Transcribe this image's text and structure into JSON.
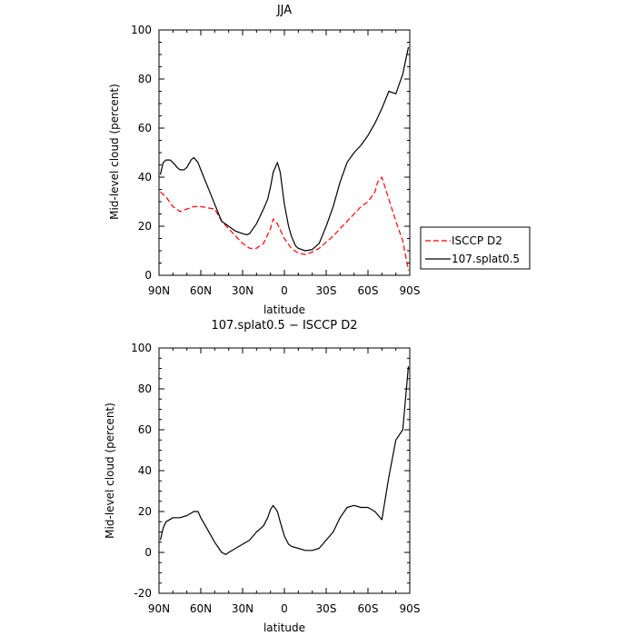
{
  "chart_data": [
    {
      "type": "line",
      "title": "JJA",
      "xlabel": "latitude",
      "ylabel": "Mid-level cloud (percent)",
      "xlim": [
        -90,
        90
      ],
      "ylim": [
        0,
        100
      ],
      "xticks": [
        {
          "value": -90,
          "label": "90N"
        },
        {
          "value": -60,
          "label": "60N"
        },
        {
          "value": -30,
          "label": "30N"
        },
        {
          "value": 0,
          "label": "0"
        },
        {
          "value": 30,
          "label": "30S"
        },
        {
          "value": 60,
          "label": "60S"
        },
        {
          "value": 90,
          "label": "90S"
        }
      ],
      "yticks": [
        0,
        20,
        40,
        60,
        80,
        100
      ],
      "grid": false,
      "legend_position": "right",
      "series": [
        {
          "name": "ISCCP D2",
          "color": "#ff0000",
          "dash": "dashed",
          "x": [
            -89,
            -85,
            -80,
            -75,
            -70,
            -65,
            -60,
            -55,
            -50,
            -45,
            -40,
            -35,
            -30,
            -25,
            -20,
            -15,
            -10,
            -8,
            -5,
            0,
            5,
            10,
            15,
            20,
            25,
            30,
            35,
            40,
            45,
            50,
            55,
            60,
            65,
            67,
            70,
            75,
            80,
            85,
            89
          ],
          "y": [
            34,
            32,
            28,
            26,
            27,
            28,
            28,
            27.5,
            27,
            22,
            19,
            16,
            13,
            11,
            11,
            13,
            19,
            23,
            21,
            15,
            11,
            9,
            8.5,
            9.5,
            11,
            13.5,
            16,
            19,
            22,
            25,
            28,
            30,
            34,
            38,
            40,
            31,
            22,
            14,
            2
          ]
        },
        {
          "name": "107.splat0.5",
          "color": "#000000",
          "dash": "solid",
          "x": [
            -89,
            -87,
            -85,
            -82,
            -80,
            -77,
            -75,
            -72,
            -70,
            -67,
            -65,
            -62,
            -60,
            -55,
            -50,
            -45,
            -40,
            -35,
            -30,
            -27,
            -25,
            -20,
            -15,
            -12,
            -10,
            -8,
            -5,
            -3,
            0,
            3,
            5,
            8,
            10,
            15,
            20,
            25,
            30,
            35,
            40,
            45,
            50,
            55,
            60,
            65,
            70,
            75,
            80,
            85,
            89
          ],
          "y": [
            41,
            46,
            47,
            47,
            46,
            44,
            43,
            43,
            44,
            47,
            48,
            46,
            43,
            36,
            29,
            22,
            20,
            18,
            17,
            16.5,
            17,
            21,
            27,
            31,
            36,
            42,
            46,
            42,
            29,
            20,
            16,
            12,
            11,
            10,
            10.5,
            13,
            20,
            28,
            38,
            46,
            50,
            53,
            57,
            62,
            68,
            75,
            74,
            82,
            93
          ]
        }
      ]
    },
    {
      "type": "line",
      "title": "107.splat0.5 − ISCCP D2",
      "xlabel": "latitude",
      "ylabel": "Mid-level cloud (percent)",
      "xlim": [
        -90,
        90
      ],
      "ylim": [
        -20,
        100
      ],
      "xticks": [
        {
          "value": -90,
          "label": "90N"
        },
        {
          "value": -60,
          "label": "60N"
        },
        {
          "value": -30,
          "label": "30N"
        },
        {
          "value": 0,
          "label": "0"
        },
        {
          "value": 30,
          "label": "30S"
        },
        {
          "value": 60,
          "label": "60S"
        },
        {
          "value": 90,
          "label": "90S"
        }
      ],
      "yticks": [
        -20,
        0,
        20,
        40,
        60,
        80,
        100
      ],
      "grid": false,
      "series": [
        {
          "color": "#000000",
          "dash": "solid",
          "x": [
            -89,
            -87,
            -85,
            -80,
            -75,
            -70,
            -65,
            -62,
            -60,
            -55,
            -50,
            -47,
            -45,
            -42,
            -40,
            -35,
            -30,
            -25,
            -20,
            -15,
            -12,
            -10,
            -8,
            -5,
            -3,
            0,
            3,
            5,
            10,
            15,
            20,
            25,
            30,
            35,
            40,
            45,
            50,
            55,
            60,
            65,
            70,
            75,
            80,
            85,
            89
          ],
          "y": [
            6,
            12,
            15,
            17,
            17,
            18,
            20,
            20,
            17,
            11,
            5,
            2,
            0,
            -1,
            0,
            2,
            4,
            6,
            10,
            13,
            17,
            21,
            23,
            20,
            15,
            8,
            4,
            3,
            2,
            1,
            1,
            2,
            6,
            10,
            17,
            22,
            23,
            22,
            22,
            20,
            16,
            37,
            55,
            60,
            91
          ]
        }
      ]
    }
  ]
}
